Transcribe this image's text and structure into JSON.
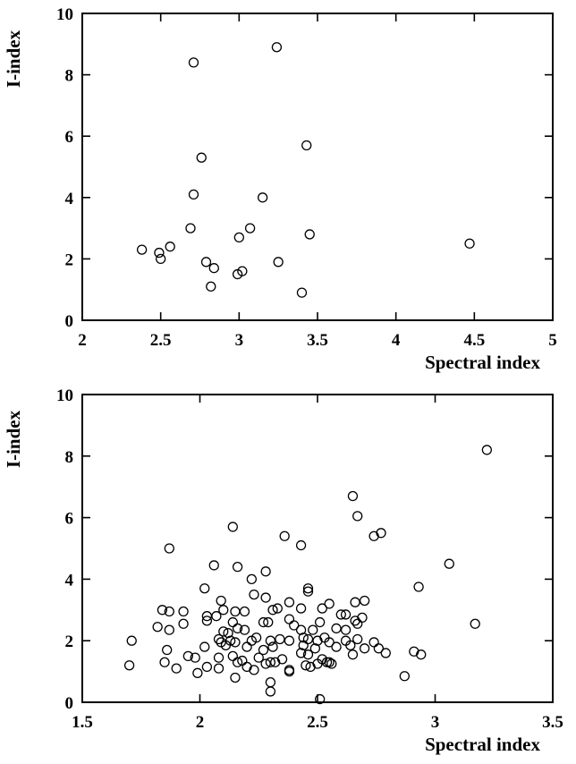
{
  "chart_data": [
    {
      "type": "scatter",
      "xlabel": "Spectral index",
      "ylabel": "I-index",
      "xlim": [
        2,
        5
      ],
      "ylim": [
        0,
        10
      ],
      "xticks": [
        2,
        2.5,
        3,
        3.5,
        4,
        4.5,
        5
      ],
      "yticks": [
        0,
        2,
        4,
        6,
        8,
        10
      ],
      "xtick_labels": [
        "2",
        "2.5",
        "3",
        "3.5",
        "4",
        "4.5",
        "5"
      ],
      "ytick_labels": [
        "0",
        "2",
        "4",
        "6",
        "8",
        "10"
      ],
      "grid": false,
      "marker": "open-circle",
      "marker_color": "#000000",
      "points": [
        [
          2.71,
          8.4
        ],
        [
          3.24,
          8.9
        ],
        [
          2.76,
          5.3
        ],
        [
          3.43,
          5.7
        ],
        [
          2.71,
          4.1
        ],
        [
          3.15,
          4.0
        ],
        [
          2.38,
          2.3
        ],
        [
          2.49,
          2.2
        ],
        [
          2.5,
          2.0
        ],
        [
          2.56,
          2.4
        ],
        [
          2.69,
          3.0
        ],
        [
          3.0,
          2.7
        ],
        [
          3.07,
          3.0
        ],
        [
          2.79,
          1.9
        ],
        [
          2.84,
          1.7
        ],
        [
          2.82,
          1.1
        ],
        [
          2.99,
          1.5
        ],
        [
          3.02,
          1.6
        ],
        [
          3.25,
          1.9
        ],
        [
          3.45,
          2.8
        ],
        [
          3.4,
          0.9
        ],
        [
          4.47,
          2.5
        ]
      ]
    },
    {
      "type": "scatter",
      "xlabel": "Spectral index",
      "ylabel": "I-index",
      "xlim": [
        1.5,
        3.5
      ],
      "ylim": [
        0,
        10
      ],
      "xticks": [
        1.5,
        2,
        2.5,
        3,
        3.5
      ],
      "yticks": [
        0,
        2,
        4,
        6,
        8,
        10
      ],
      "xtick_labels": [
        "1.5",
        "2",
        "2.5",
        "3",
        "3.5"
      ],
      "ytick_labels": [
        "0",
        "2",
        "4",
        "6",
        "8",
        "10"
      ],
      "grid": false,
      "marker": "open-circle",
      "marker_color": "#000000",
      "points": [
        [
          3.22,
          8.2
        ],
        [
          2.65,
          6.7
        ],
        [
          2.67,
          6.05
        ],
        [
          2.14,
          5.7
        ],
        [
          2.36,
          5.4
        ],
        [
          2.74,
          5.4
        ],
        [
          2.77,
          5.5
        ],
        [
          2.43,
          5.1
        ],
        [
          1.87,
          5.0
        ],
        [
          3.06,
          4.5
        ],
        [
          2.06,
          4.45
        ],
        [
          2.16,
          4.4
        ],
        [
          2.28,
          4.25
        ],
        [
          2.22,
          4.0
        ],
        [
          2.93,
          3.75
        ],
        [
          2.46,
          3.7
        ],
        [
          2.46,
          3.6
        ],
        [
          2.02,
          3.7
        ],
        [
          2.23,
          3.5
        ],
        [
          2.28,
          3.4
        ],
        [
          2.09,
          3.3
        ],
        [
          2.38,
          3.25
        ],
        [
          2.55,
          3.2
        ],
        [
          2.66,
          3.25
        ],
        [
          2.7,
          3.3
        ],
        [
          1.84,
          3.0
        ],
        [
          1.87,
          2.95
        ],
        [
          1.93,
          2.95
        ],
        [
          2.1,
          3.0
        ],
        [
          2.19,
          2.95
        ],
        [
          2.15,
          2.95
        ],
        [
          2.31,
          3.0
        ],
        [
          2.33,
          3.05
        ],
        [
          2.43,
          3.05
        ],
        [
          2.52,
          3.05
        ],
        [
          2.6,
          2.85
        ],
        [
          2.62,
          2.85
        ],
        [
          2.03,
          2.8
        ],
        [
          2.07,
          2.8
        ],
        [
          2.03,
          2.65
        ],
        [
          2.14,
          2.6
        ],
        [
          2.38,
          2.7
        ],
        [
          2.51,
          2.6
        ],
        [
          2.66,
          2.65
        ],
        [
          2.69,
          2.75
        ],
        [
          2.67,
          2.55
        ],
        [
          2.16,
          2.4
        ],
        [
          2.19,
          2.35
        ],
        [
          2.29,
          2.6
        ],
        [
          2.27,
          2.6
        ],
        [
          1.82,
          2.45
        ],
        [
          1.87,
          2.35
        ],
        [
          1.93,
          2.55
        ],
        [
          2.1,
          2.3
        ],
        [
          2.12,
          2.25
        ],
        [
          2.43,
          2.35
        ],
        [
          2.4,
          2.5
        ],
        [
          2.48,
          2.35
        ],
        [
          2.58,
          2.4
        ],
        [
          2.62,
          2.35
        ],
        [
          1.71,
          2.0
        ],
        [
          2.08,
          2.05
        ],
        [
          2.13,
          2.0
        ],
        [
          2.09,
          1.95
        ],
        [
          2.22,
          2.0
        ],
        [
          2.24,
          2.1
        ],
        [
          2.3,
          2.0
        ],
        [
          2.34,
          2.05
        ],
        [
          2.38,
          2.0
        ],
        [
          2.44,
          2.1
        ],
        [
          2.46,
          2.05
        ],
        [
          2.5,
          2.0
        ],
        [
          2.53,
          2.1
        ],
        [
          2.55,
          1.95
        ],
        [
          2.62,
          2.0
        ],
        [
          2.67,
          2.05
        ],
        [
          2.74,
          1.95
        ],
        [
          1.86,
          1.7
        ],
        [
          2.02,
          1.8
        ],
        [
          2.11,
          1.85
        ],
        [
          2.15,
          1.95
        ],
        [
          2.2,
          1.8
        ],
        [
          2.27,
          1.7
        ],
        [
          2.31,
          1.8
        ],
        [
          2.44,
          1.85
        ],
        [
          2.49,
          1.75
        ],
        [
          2.58,
          1.8
        ],
        [
          2.64,
          1.85
        ],
        [
          2.7,
          1.75
        ],
        [
          2.76,
          1.75
        ],
        [
          2.91,
          1.65
        ],
        [
          2.94,
          1.55
        ],
        [
          2.79,
          1.6
        ],
        [
          1.95,
          1.5
        ],
        [
          1.98,
          1.45
        ],
        [
          2.08,
          1.45
        ],
        [
          2.14,
          1.5
        ],
        [
          2.18,
          1.35
        ],
        [
          2.25,
          1.45
        ],
        [
          2.3,
          1.3
        ],
        [
          2.35,
          1.4
        ],
        [
          2.43,
          1.6
        ],
        [
          2.46,
          1.55
        ],
        [
          2.52,
          1.4
        ],
        [
          2.55,
          1.3
        ],
        [
          2.65,
          1.55
        ],
        [
          1.7,
          1.2
        ],
        [
          1.85,
          1.3
        ],
        [
          1.9,
          1.1
        ],
        [
          1.99,
          0.95
        ],
        [
          2.03,
          1.15
        ],
        [
          2.08,
          1.1
        ],
        [
          2.16,
          1.3
        ],
        [
          2.2,
          1.15
        ],
        [
          2.23,
          1.05
        ],
        [
          2.28,
          1.25
        ],
        [
          2.32,
          1.3
        ],
        [
          2.38,
          1.05
        ],
        [
          2.38,
          1.0
        ],
        [
          2.45,
          1.2
        ],
        [
          2.47,
          1.15
        ],
        [
          2.5,
          1.25
        ],
        [
          2.54,
          1.3
        ],
        [
          2.56,
          1.25
        ],
        [
          2.15,
          0.8
        ],
        [
          2.3,
          0.65
        ],
        [
          2.3,
          0.35
        ],
        [
          2.51,
          0.1
        ],
        [
          2.87,
          0.85
        ],
        [
          3.17,
          2.55
        ]
      ]
    }
  ]
}
